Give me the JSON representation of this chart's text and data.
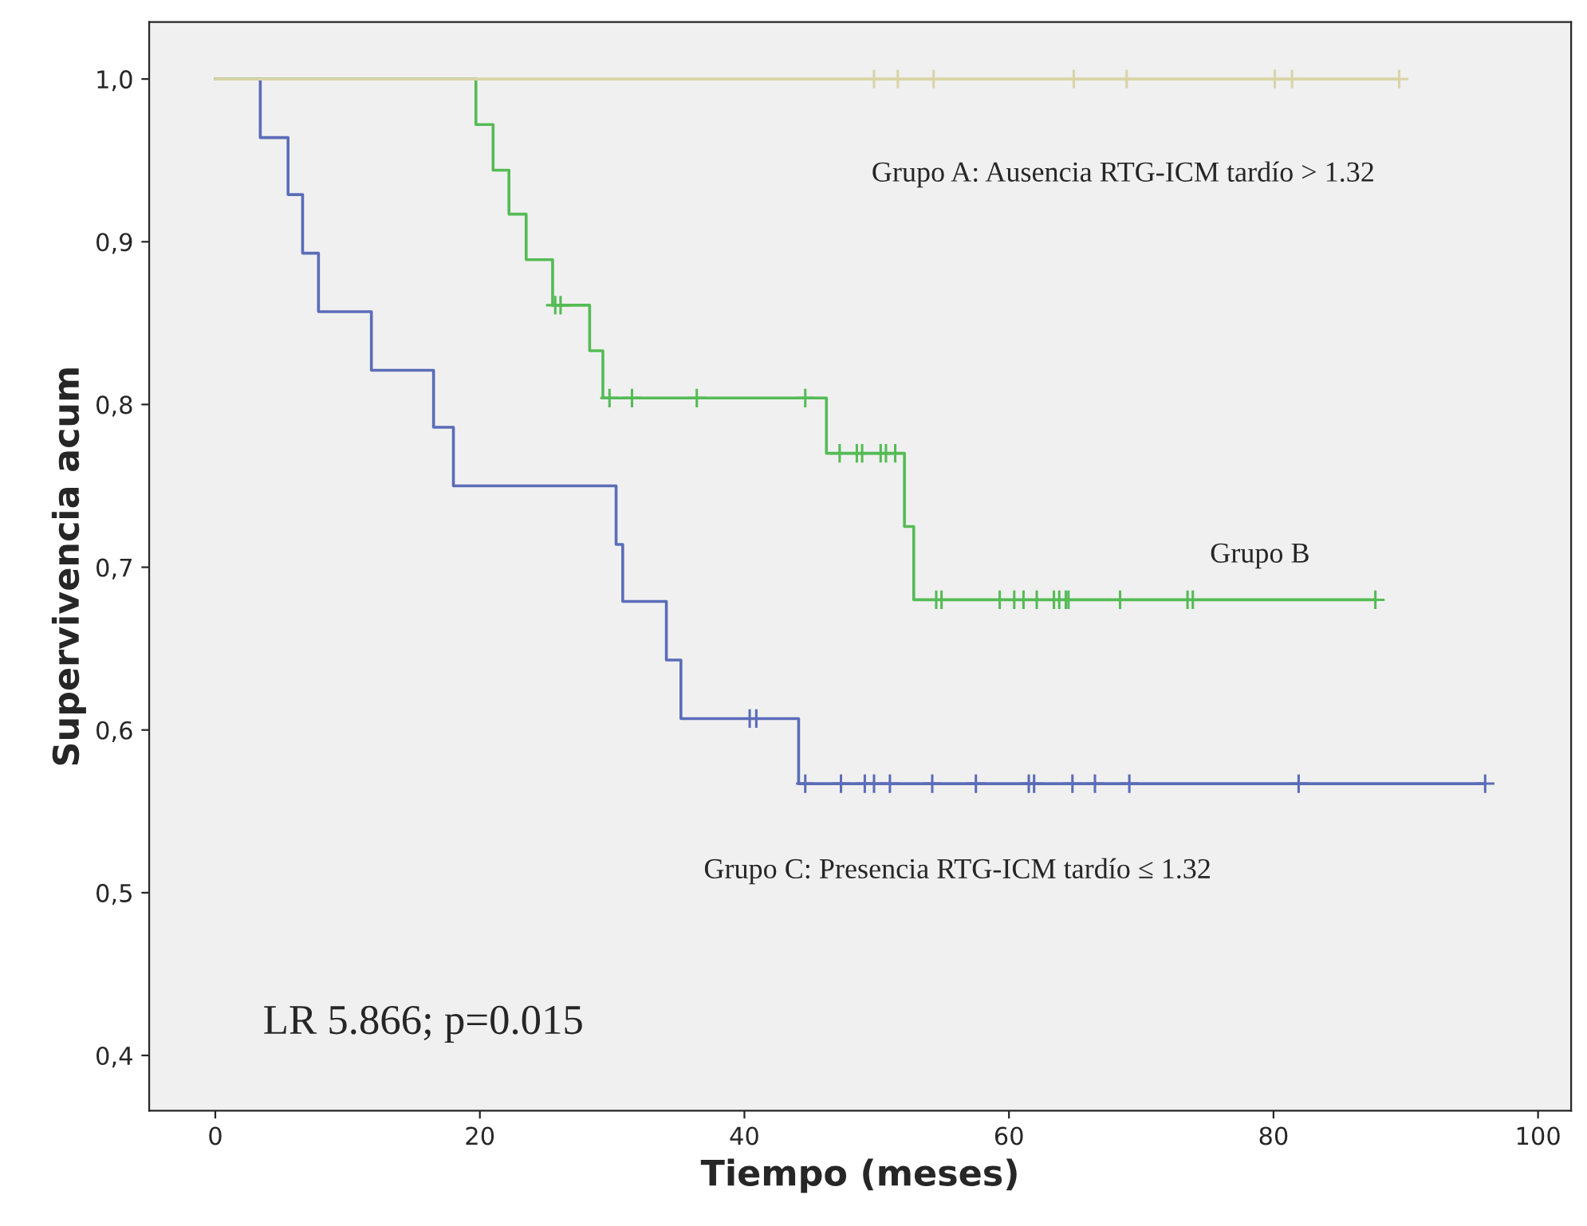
{
  "chart_data": {
    "type": "step",
    "xlabel": "Tiempo (meses)",
    "ylabel": "Supervivencia acum",
    "xlim": [
      -5,
      102.5
    ],
    "xticks": [
      0,
      20,
      40,
      60,
      80,
      100
    ],
    "ylim": [
      0.366,
      1.035
    ],
    "yticks": [
      {
        "value": 0.4,
        "label": "0,4"
      },
      {
        "value": 0.5,
        "label": "0,5"
      },
      {
        "value": 0.6,
        "label": "0,6"
      },
      {
        "value": 0.7,
        "label": "0,7"
      },
      {
        "value": 0.8,
        "label": "0,8"
      },
      {
        "value": 0.9,
        "label": "0,9"
      },
      {
        "value": 1.0,
        "label": "1,0"
      }
    ],
    "grid": false,
    "legend": false,
    "series": [
      {
        "color": "#d9d4a8",
        "x": [
          0,
          89.5
        ],
        "values": [
          1.0,
          1.0
        ]
      },
      {
        "type": "scatter",
        "marker": "cross",
        "color": "#d9d4a8",
        "x": [
          49.8,
          51.6,
          54.3,
          64.9,
          68.9,
          80.1,
          81.4,
          89.5
        ],
        "values": [
          1.0,
          1.0,
          1.0,
          1.0,
          1.0,
          1.0,
          1.0,
          1.0
        ]
      },
      {
        "color": "#55bb55",
        "x": [
          0,
          19.7,
          21.0,
          22.2,
          23.5,
          25.5,
          28.3,
          29.3,
          46.2,
          52.1,
          52.8,
          87.7
        ],
        "values": [
          1.0,
          0.972,
          0.944,
          0.917,
          0.889,
          0.861,
          0.833,
          0.804,
          0.77,
          0.725,
          0.68,
          0.68
        ]
      },
      {
        "type": "scatter",
        "marker": "cross",
        "color": "#55bb55",
        "x": [
          25.7,
          26.1,
          29.8,
          31.5,
          36.4,
          44.6,
          47.2,
          48.5,
          48.9,
          50.3,
          50.7,
          51.4,
          54.5,
          54.9,
          59.3,
          60.4,
          61.1,
          62.1,
          63.4,
          63.8,
          64.3,
          64.5,
          68.4,
          73.5,
          73.9,
          87.7
        ],
        "values": [
          0.861,
          0.861,
          0.804,
          0.804,
          0.804,
          0.804,
          0.77,
          0.77,
          0.77,
          0.77,
          0.77,
          0.77,
          0.68,
          0.68,
          0.68,
          0.68,
          0.68,
          0.68,
          0.68,
          0.68,
          0.68,
          0.68,
          0.68,
          0.68,
          0.68,
          0.68
        ]
      },
      {
        "color": "#5b6cb8",
        "x": [
          0,
          3.4,
          5.5,
          6.6,
          7.8,
          11.8,
          16.5,
          18.0,
          30.3,
          30.8,
          34.1,
          35.2,
          44.1,
          96.0
        ],
        "values": [
          1.0,
          0.964,
          0.929,
          0.893,
          0.857,
          0.821,
          0.786,
          0.75,
          0.714,
          0.679,
          0.643,
          0.607,
          0.567,
          0.567
        ]
      },
      {
        "type": "scatter",
        "marker": "cross",
        "color": "#5b6cb8",
        "x": [
          40.4,
          40.9,
          44.6,
          47.3,
          49.1,
          49.8,
          51.0,
          54.2,
          57.5,
          61.5,
          61.9,
          64.8,
          66.5,
          69.1,
          81.9,
          96.0
        ],
        "values": [
          0.607,
          0.607,
          0.567,
          0.567,
          0.567,
          0.567,
          0.567,
          0.567,
          0.567,
          0.567,
          0.567,
          0.567,
          0.567,
          0.567,
          0.567,
          0.567
        ]
      }
    ],
    "annotations": [
      "Grupo A: Ausencia RTG-ICM tardío > 1.32",
      "Grupo B",
      "Grupo C: Presencia RTG-ICM tardío ≤ 1.32",
      "LR 5.866; p=0.015"
    ]
  }
}
